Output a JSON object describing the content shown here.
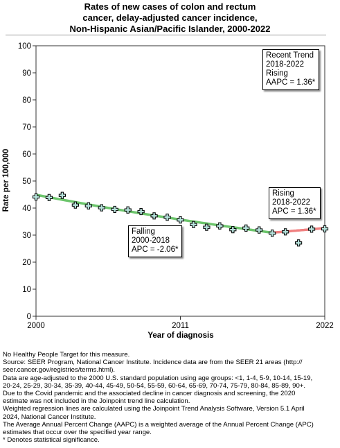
{
  "title_lines": [
    "Rates of new cases of colon and rectum",
    "cancer, delay-adjusted cancer incidence,",
    "Non-Hispanic Asian/Pacific Islander,  2000-2022"
  ],
  "annotations": {
    "recent": [
      "Recent Trend",
      "2018-2022",
      "Rising",
      "AAPC =  1.36*"
    ],
    "rising": [
      "Rising",
      "2018-2022",
      "APC =  1.36*"
    ],
    "falling": [
      "Falling",
      "2000-2018",
      "APC = -2.06*"
    ]
  },
  "notes": [
    "No Healthy People Target for this measure.",
    "Source: SEER Program, National Cancer Institute. Incidence data are from the SEER 21 areas (http://",
    "seer.cancer.gov/registries/terms.html).",
    "Data are age-adjusted to the 2000 U.S. standard population using age groups: <1, 1-4, 5-9, 10-14, 15-19,",
    "20-24, 25-29, 30-34, 35-39, 40-44, 45-49, 50-54, 55-59, 60-64, 65-69, 70-74, 75-79, 80-84, 85-89, 90+.",
    "Due to the Covid pandemic and the associated decline in cancer diagnosis and screening, the 2020",
    "estimate was not included in the Joinpoint trend line calculation.",
    "Weighted regression lines are calculated using the Joinpoint Trend Analysis Software, Version 5.1 April",
    "2024, National Cancer Institute.",
    "The Average Annual Percent Change (AAPC) is a weighted average of the Annual Percent Change (APC)",
    "estimates that occur over the specified year range.",
    "* Denotes statistical significance."
  ],
  "chart_data": {
    "type": "line",
    "title": "Rates of new cases of colon and rectum cancer, delay-adjusted cancer incidence, Non-Hispanic Asian/Pacific Islander,  2000-2022",
    "xlabel": "Year of diagnosis",
    "ylabel": "Rate per 100,000",
    "xlim": [
      2000,
      2022
    ],
    "ylim": [
      0,
      100
    ],
    "x_ticks": [
      2000,
      2011,
      2022
    ],
    "y_ticks": [
      0,
      10,
      20,
      30,
      40,
      50,
      60,
      70,
      80,
      90,
      100
    ],
    "grid": false,
    "observed": {
      "x": [
        2000,
        2001,
        2002,
        2003,
        2004,
        2005,
        2006,
        2007,
        2008,
        2009,
        2010,
        2011,
        2012,
        2013,
        2014,
        2015,
        2016,
        2017,
        2018,
        2019,
        2020,
        2021,
        2022
      ],
      "y": [
        44.1,
        43.9,
        44.7,
        41.1,
        40.8,
        40.1,
        39.5,
        39.3,
        38.7,
        37.1,
        36.6,
        35.6,
        33.9,
        32.9,
        33.4,
        32.0,
        32.6,
        31.9,
        30.7,
        31.2,
        27.1,
        32.2,
        32.3
      ]
    },
    "trend_segments": [
      {
        "label": "Falling",
        "x_start": 2000,
        "x_end": 2018,
        "apc": -2.06,
        "y_start": 44.9,
        "y_end": 30.9,
        "color": "#6cc56c"
      },
      {
        "label": "Rising",
        "x_start": 2018,
        "x_end": 2022,
        "apc": 1.36,
        "y_start": 30.9,
        "y_end": 32.6,
        "color": "#f08080"
      }
    ],
    "recent_trend": {
      "years": "2018-2022",
      "direction": "Rising",
      "aapc": 1.36
    }
  }
}
